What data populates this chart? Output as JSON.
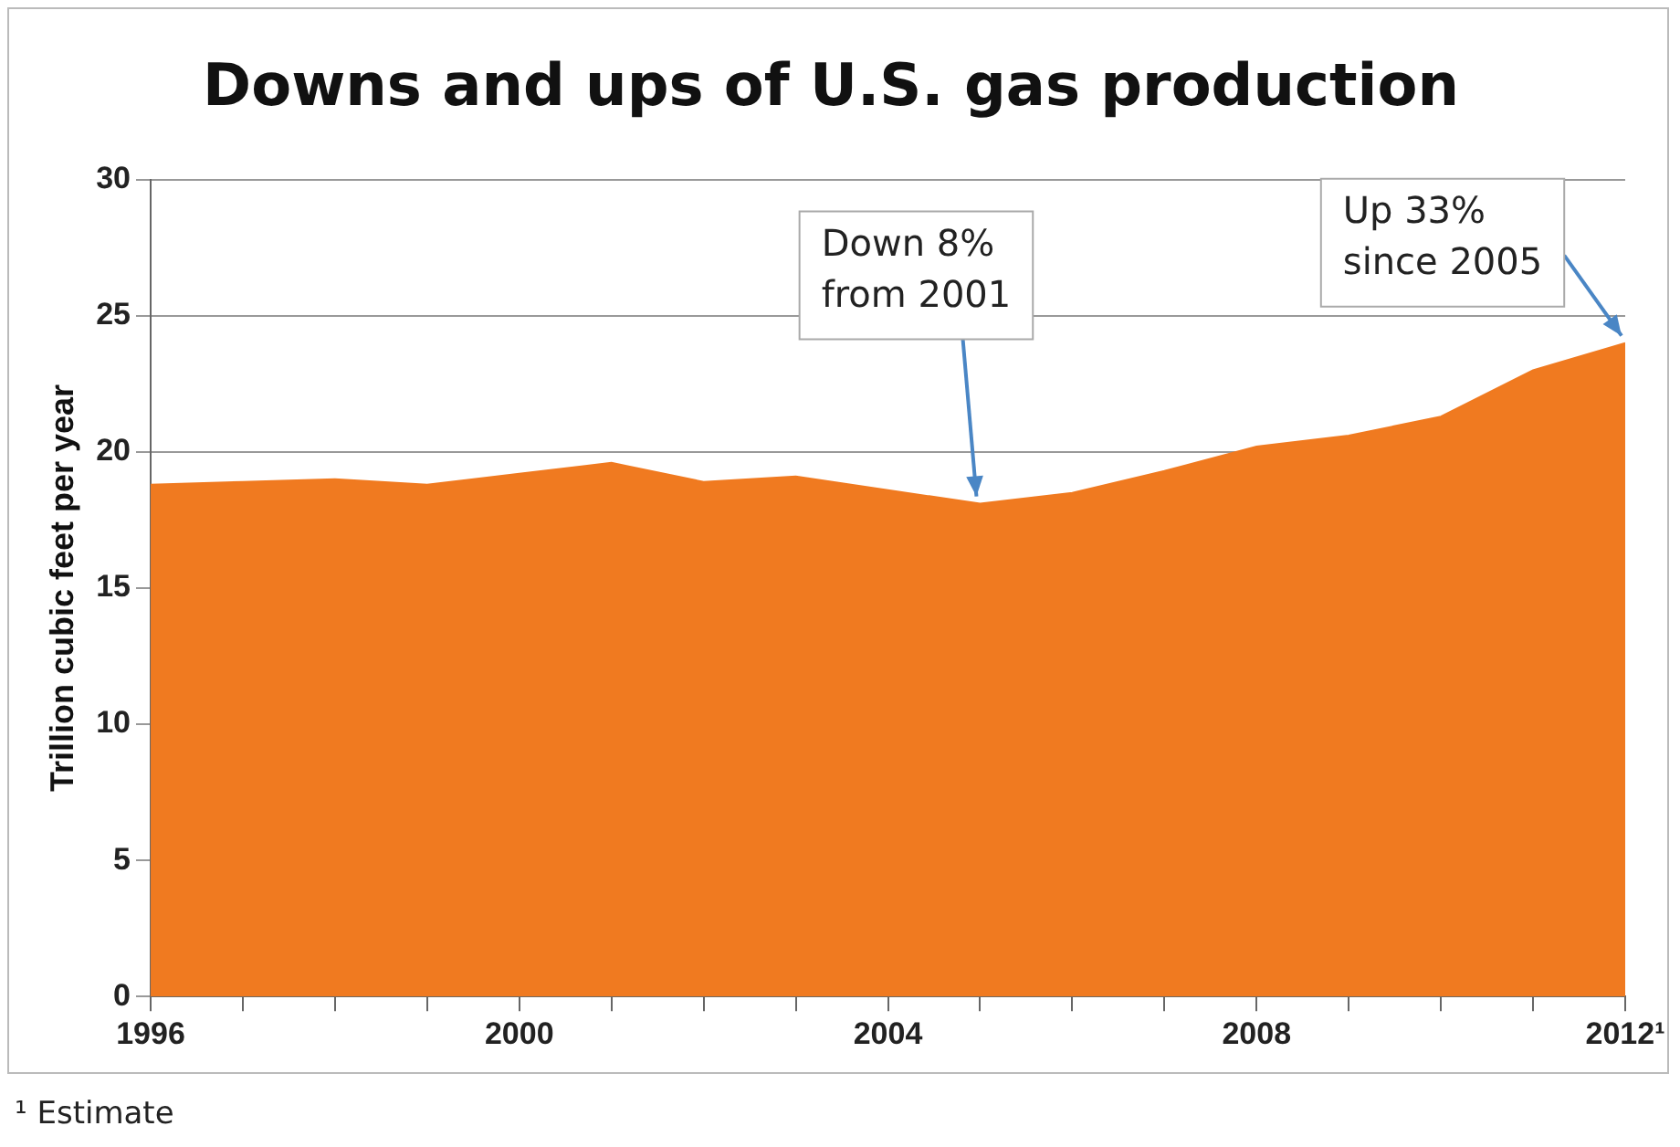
{
  "chart_data": {
    "type": "area",
    "title": "Downs and ups of U.S. gas production",
    "ylabel": "Trillion cubic feet per year",
    "x": [
      1996,
      1997,
      1998,
      1999,
      2000,
      2001,
      2002,
      2003,
      2004,
      2005,
      2006,
      2007,
      2008,
      2009,
      2010,
      2011,
      2012
    ],
    "series": [
      {
        "color": "#f07a20",
        "values": [
          18.8,
          18.9,
          19.0,
          18.8,
          19.2,
          19.6,
          18.9,
          19.1,
          18.6,
          18.1,
          18.5,
          19.3,
          20.2,
          20.6,
          21.3,
          23.0,
          24.0
        ]
      }
    ],
    "xlim": [
      1996,
      2012
    ],
    "xticks": [
      1996,
      {
        "value": 1997,
        "label": null
      },
      {
        "value": 1998,
        "label": null
      },
      {
        "value": 1999,
        "label": null
      },
      2000,
      {
        "value": 2001,
        "label": null
      },
      {
        "value": 2002,
        "label": null
      },
      {
        "value": 2003,
        "label": null
      },
      2004,
      {
        "value": 2005,
        "label": null
      },
      {
        "value": 2006,
        "label": null
      },
      {
        "value": 2007,
        "label": null
      },
      2008,
      {
        "value": 2009,
        "label": null
      },
      {
        "value": 2010,
        "label": null
      },
      {
        "value": 2011,
        "label": null
      },
      {
        "value": 2012,
        "label": "2012¹"
      }
    ],
    "ylim": [
      0,
      30
    ],
    "yticks": [
      0,
      5,
      10,
      15,
      20,
      25,
      30
    ],
    "grid": "y",
    "legend": false,
    "annotations": [
      {
        "text": "Down 8%\nfrom 2001",
        "x": 2005,
        "y": 18.1
      },
      {
        "text": "Up 33%\nsince 2005",
        "x": 2012,
        "y": 24.0
      },
      "¹ Estimate"
    ]
  }
}
